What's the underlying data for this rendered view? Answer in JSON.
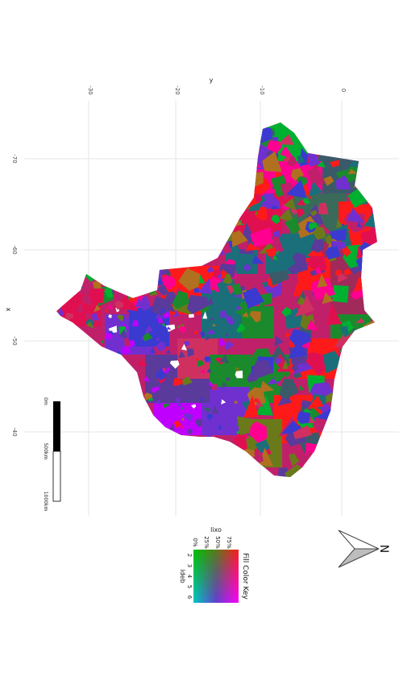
{
  "map": {
    "axis_y_title": "y",
    "axis_x_title": "x",
    "y_ticks": [
      "-30",
      "-20",
      "-10",
      "0"
    ],
    "x_ticks": [
      "-70",
      "-60",
      "-50",
      "-40"
    ],
    "scalebar": {
      "labels": [
        "0m",
        "500km",
        "1000km"
      ]
    },
    "north_arrow": {
      "label": "N"
    }
  },
  "legend": {
    "title": "Fill Color Key",
    "axis1_title": "lixo",
    "axis1_ticks": [
      "0%",
      "25%",
      "50%",
      "75%"
    ],
    "axis2_title": "ideb",
    "axis2_ticks": [
      "2",
      "3",
      "4",
      "5",
      "6"
    ],
    "colors": {
      "high_lixo": "#ff1a1a",
      "low_lixo": "#00c000",
      "high_ideb": "#c000ff",
      "low_ideb": "#3030ff"
    }
  },
  "palette": [
    "#ff1a1a",
    "#e01050",
    "#ff0090",
    "#1b8a2c",
    "#6a7a1a",
    "#1a6f7a",
    "#c0206a",
    "#5a3a9a",
    "#7030d0",
    "#3a3ad0",
    "#00b030",
    "#3a5a6a",
    "#b07020",
    "#d03060"
  ]
}
